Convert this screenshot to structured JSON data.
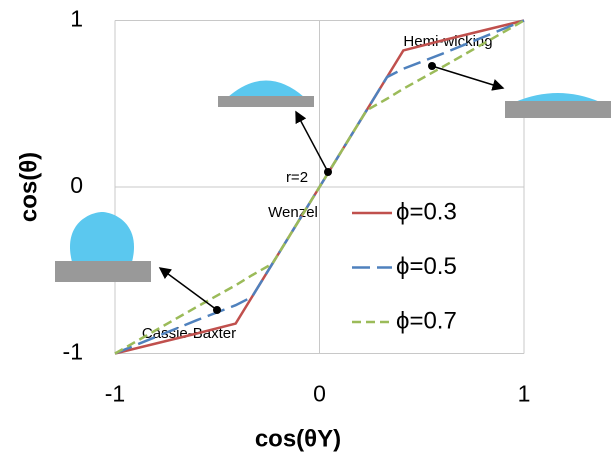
{
  "chart_data": {
    "type": "line",
    "x_label": "cos(θY)",
    "y_label": "cos(θ)",
    "x": [
      -1,
      -0.8,
      -0.6,
      -0.41,
      -0.33,
      -0.23,
      0,
      0.23,
      0.33,
      0.41,
      0.6,
      0.8,
      1
    ],
    "series": [
      {
        "name": "ϕ=0.3",
        "color": "#c0504d",
        "dash": "none",
        "values": [
          -1,
          -0.94,
          -0.88,
          -0.82,
          -0.66,
          -0.46,
          0,
          0.46,
          0.66,
          0.82,
          0.88,
          0.94,
          1
        ]
      },
      {
        "name": "ϕ=0.5",
        "color": "#4f81bd",
        "dash": "18 7",
        "values": [
          -1,
          -0.9,
          -0.8,
          -0.71,
          -0.66,
          -0.46,
          0,
          0.46,
          0.66,
          0.71,
          0.8,
          0.9,
          1
        ]
      },
      {
        "name": "ϕ=0.7",
        "color": "#9bbb59",
        "dash": "9 5",
        "values": [
          -1,
          -0.86,
          -0.72,
          -0.59,
          -0.53,
          -0.46,
          0,
          0.46,
          0.53,
          0.59,
          0.72,
          0.86,
          1
        ]
      }
    ],
    "xlim": [
      -1,
      1
    ],
    "ylim": [
      -1,
      1
    ],
    "xticks": [
      -1,
      0,
      1
    ],
    "yticks": [
      -1,
      0,
      1
    ],
    "grid": true,
    "annotations": [
      "Hemi-wicking",
      "r=2",
      "Wenzel",
      "Cassie-Baxter"
    ]
  }
}
